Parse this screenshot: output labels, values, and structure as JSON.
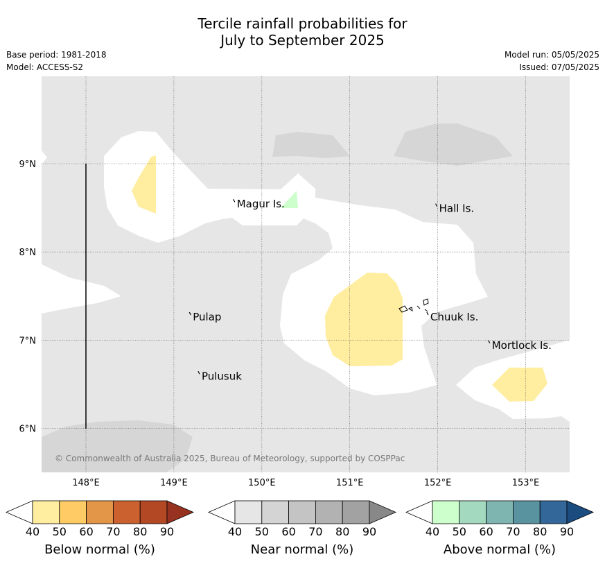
{
  "title_line1": "Tercile rainfall probabilities for",
  "title_line2": "July to September 2025",
  "base_period": "Base period: 1981-2018",
  "model": "Model: ACCESS-S2",
  "model_run": "Model run: 05/05/2025",
  "issued": "Issued: 07/05/2025",
  "copyright": "© Commonwealth of Australia 2025, Bureau of Meteorology, supported by COSPPac",
  "lon_ticks": [
    "148°E",
    "149°E",
    "150°E",
    "151°E",
    "152°E",
    "153°E"
  ],
  "lat_ticks": [
    "9°N",
    "8°N",
    "7°N",
    "6°N"
  ],
  "places": [
    {
      "name": "Magur Is.",
      "lon": 149.7,
      "lat": 8.55
    },
    {
      "name": "Hall Is.",
      "lon": 152.0,
      "lat": 8.5
    },
    {
      "name": "Pulap",
      "lon": 149.2,
      "lat": 7.27
    },
    {
      "name": "Chuuk Is.",
      "lon": 151.9,
      "lat": 7.27
    },
    {
      "name": "Mortlock Is.",
      "lon": 152.6,
      "lat": 6.95
    },
    {
      "name": "Pulusuk",
      "lon": 149.3,
      "lat": 6.6
    }
  ],
  "colorbars": [
    {
      "label": "Below normal (%)",
      "ticks": [
        "40",
        "50",
        "60",
        "70",
        "80",
        "90"
      ],
      "colors": [
        "#ffffff",
        "#ffeda0",
        "#fecb65",
        "#e39548",
        "#cb612e",
        "#b34825",
        "#973220"
      ]
    },
    {
      "label": "Near normal (%)",
      "ticks": [
        "40",
        "50",
        "60",
        "70",
        "80",
        "90"
      ],
      "colors": [
        "#ffffff",
        "#e6e6e6",
        "#d4d4d4",
        "#c4c4c4",
        "#b2b2b2",
        "#a2a2a2",
        "#888888"
      ]
    },
    {
      "label": "Above normal (%)",
      "ticks": [
        "40",
        "50",
        "60",
        "70",
        "80",
        "90"
      ],
      "colors": [
        "#ffffff",
        "#ccffcc",
        "#a3d9bf",
        "#7fb5b0",
        "#5a93a0",
        "#336699",
        "#1a4c80"
      ]
    }
  ],
  "colors": {
    "background_near": "#e6e6e6",
    "near_50": "#d6d6d6",
    "below_50": "#ffeda0",
    "above_50": "#ccffcc",
    "white": "#ffffff"
  }
}
